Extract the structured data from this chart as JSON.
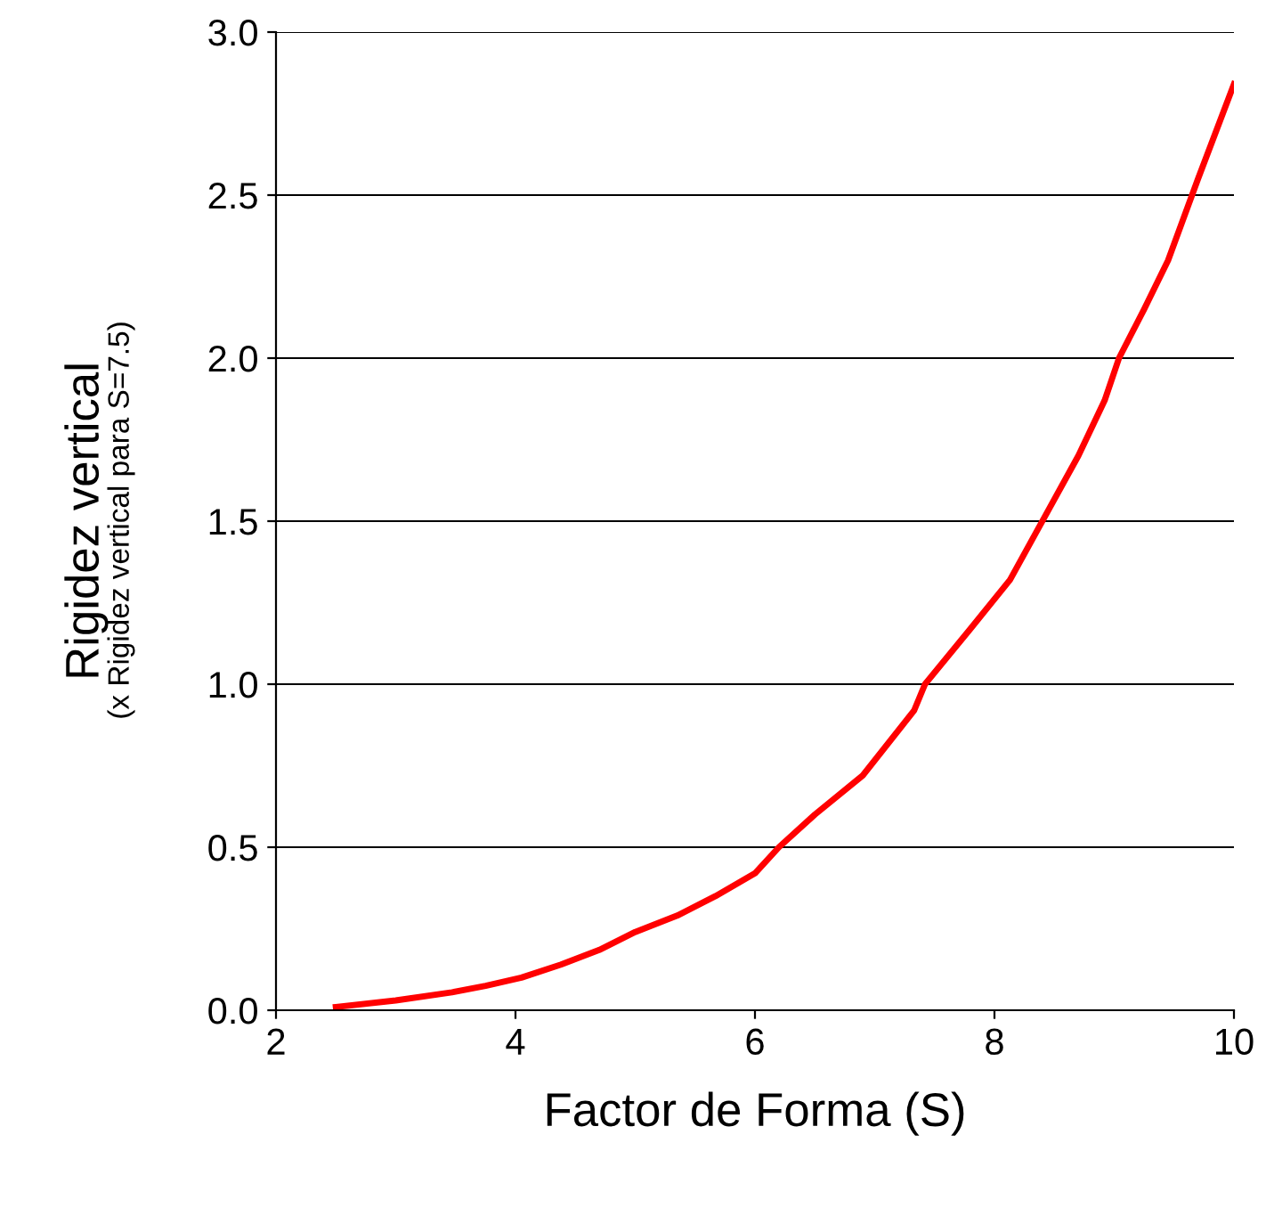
{
  "chart_data": {
    "type": "line",
    "xlabel": "Factor de Forma (S)",
    "ylabel": "Rigidez vertical",
    "annotations": [
      "(x Rigidez vertical para S=7.5)"
    ],
    "x": [
      2.5,
      3.0,
      3.47,
      3.75,
      4.05,
      4.38,
      4.7,
      5.0,
      5.35,
      5.67,
      6.0,
      6.2,
      6.5,
      6.9,
      7.33,
      7.42,
      7.8,
      8.13,
      8.43,
      8.7,
      8.92,
      9.04,
      9.25,
      9.45,
      9.7,
      10.0
    ],
    "series": [
      {
        "color": "#ff0000",
        "values": [
          0.01,
          0.03,
          0.055,
          0.075,
          0.1,
          0.14,
          0.185,
          0.24,
          0.29,
          0.35,
          0.42,
          0.5,
          0.6,
          0.72,
          0.92,
          1.0,
          1.17,
          1.32,
          1.52,
          1.7,
          1.87,
          2.0,
          2.15,
          2.3,
          2.55,
          2.84
        ]
      }
    ],
    "xlim": [
      2,
      10
    ],
    "ylim": [
      0,
      3
    ],
    "xticks": [
      2,
      4,
      6,
      8,
      10
    ],
    "yticks": [
      {
        "value": 0,
        "label": "0.0"
      },
      {
        "value": 0.5,
        "label": "0.5"
      },
      {
        "value": 1,
        "label": "1.0"
      },
      {
        "value": 1.5,
        "label": "1.5"
      },
      {
        "value": 2,
        "label": "2.0"
      },
      {
        "value": 2.5,
        "label": "2.5"
      },
      {
        "value": 3,
        "label": "3.0"
      }
    ],
    "grid": "y",
    "legend": false,
    "marker": "none",
    "line_style": "solid"
  }
}
